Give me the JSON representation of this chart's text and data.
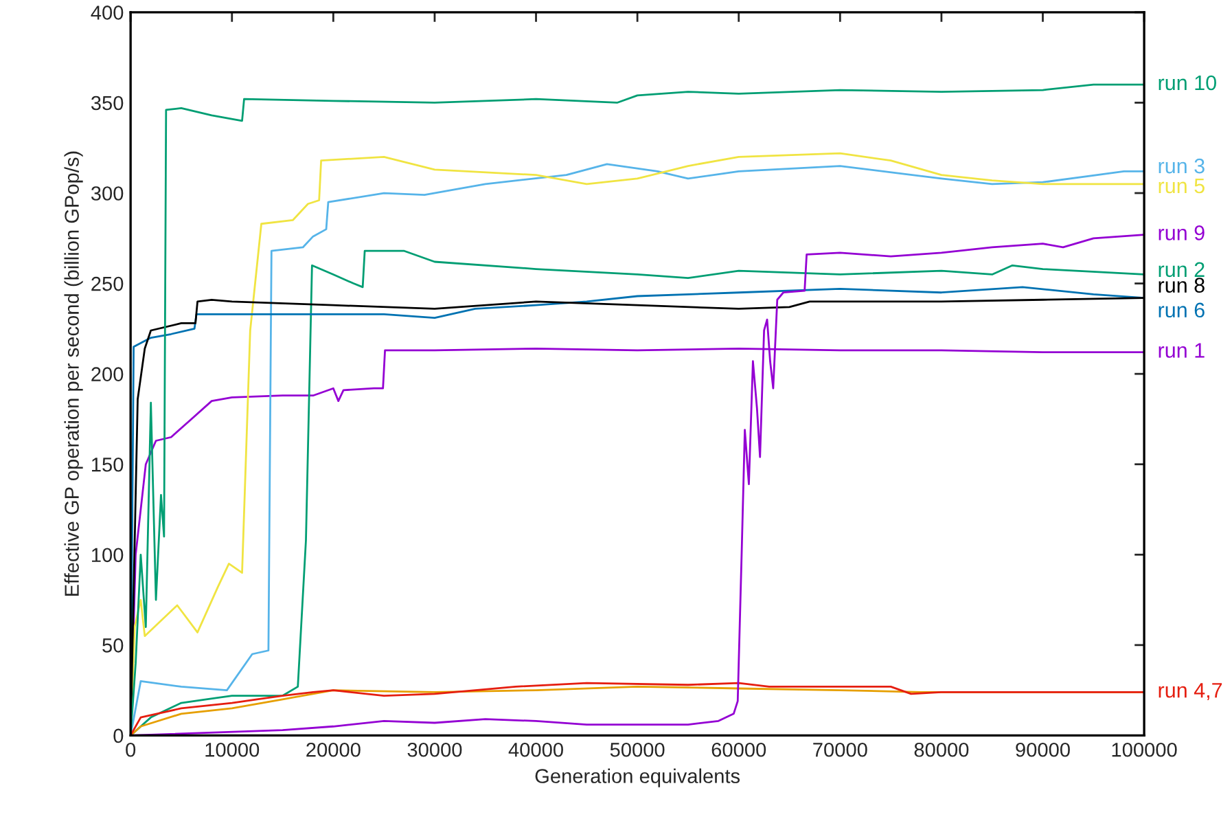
{
  "chart_data": {
    "type": "line",
    "xlabel": "Generation equivalents",
    "ylabel": "Effective GP operation per second (billion GPop/s)",
    "xlim": [
      0,
      100000
    ],
    "ylim": [
      0,
      400
    ],
    "xticks": [
      0,
      10000,
      20000,
      30000,
      40000,
      50000,
      60000,
      70000,
      80000,
      90000,
      100000
    ],
    "yticks": [
      0,
      50,
      100,
      150,
      200,
      250,
      300,
      350,
      400
    ],
    "grid": false,
    "legend": false,
    "marker": "none",
    "line_style": "solid",
    "series": [
      {
        "name": "run 1",
        "color": "#9400d3",
        "x": [
          0,
          500,
          1500,
          2500,
          4000,
          6000,
          8000,
          10000,
          15000,
          18000,
          20000,
          20500,
          21000,
          24000,
          24900,
          25100,
          30000,
          40000,
          50000,
          60000,
          70000,
          80000,
          90000,
          100000
        ],
        "values": [
          0,
          100,
          150,
          163,
          165,
          175,
          185,
          187,
          188,
          188,
          192,
          185,
          191,
          192,
          192,
          213,
          213,
          214,
          213,
          214,
          213,
          213,
          212,
          212
        ]
      },
      {
        "name": "run 2",
        "color": "#009e73",
        "x": [
          0,
          2000,
          5000,
          10000,
          15000,
          16500,
          17300,
          17900,
          20000,
          22000,
          22900,
          23100,
          27000,
          30000,
          40000,
          50000,
          55000,
          60000,
          70000,
          80000,
          85000,
          87000,
          90000,
          100000
        ],
        "values": [
          0,
          10,
          18,
          22,
          22,
          27,
          108,
          260,
          255,
          250,
          248,
          268,
          268,
          262,
          258,
          255,
          253,
          257,
          255,
          257,
          255,
          260,
          258,
          255
        ]
      },
      {
        "name": "run 3",
        "color": "#56b4e9",
        "x": [
          0,
          1000,
          5000,
          9500,
          12000,
          13600,
          13900,
          17000,
          18000,
          19300,
          19500,
          25000,
          29000,
          35000,
          43000,
          47000,
          52000,
          55000,
          60000,
          70000,
          80000,
          85000,
          90000,
          98000,
          100000
        ],
        "values": [
          0,
          30,
          27,
          25,
          45,
          47,
          268,
          270,
          276,
          280,
          295,
          300,
          299,
          305,
          310,
          316,
          312,
          308,
          312,
          315,
          308,
          305,
          306,
          312,
          312
        ]
      },
      {
        "name": null,
        "color": "#e69f00",
        "x": [
          0,
          1000,
          5000,
          10000,
          15000,
          18000,
          20000,
          30000,
          40000,
          50000,
          60000,
          70000,
          78000,
          100000
        ],
        "values": [
          0,
          5,
          12,
          15,
          20,
          23,
          25,
          24,
          25,
          27,
          26,
          25,
          24,
          24
        ]
      },
      {
        "name": "run 5",
        "color": "#f0e442",
        "x": [
          0,
          400,
          1000,
          1400,
          4600,
          6600,
          8600,
          9700,
          11000,
          11800,
          12900,
          16000,
          17500,
          18600,
          18800,
          25000,
          30000,
          40000,
          45000,
          50000,
          55000,
          60000,
          70000,
          75000,
          80000,
          85000,
          90000,
          100000
        ],
        "values": [
          0,
          60,
          75,
          55,
          72,
          57,
          82,
          95,
          90,
          224,
          283,
          285,
          294,
          296,
          318,
          320,
          313,
          310,
          305,
          308,
          315,
          320,
          322,
          318,
          310,
          307,
          305,
          305
        ]
      },
      {
        "name": "run 6",
        "color": "#0072b2",
        "x": [
          0,
          300,
          2000,
          4000,
          6300,
          6500,
          25000,
          30000,
          34000,
          40000,
          45000,
          50000,
          60000,
          70000,
          80000,
          88000,
          95000,
          100000
        ],
        "values": [
          0,
          215,
          220,
          222,
          225,
          233,
          233,
          231,
          236,
          238,
          240,
          243,
          245,
          247,
          245,
          248,
          244,
          242
        ]
      },
      {
        "name": "run 4,7",
        "color": "#e51e10",
        "x": [
          0,
          1000,
          5000,
          10000,
          15000,
          18000,
          20000,
          25000,
          30000,
          38000,
          45000,
          55000,
          60000,
          63000,
          75000,
          77000,
          80000,
          100000
        ],
        "values": [
          0,
          10,
          15,
          18,
          22,
          24,
          25,
          22,
          23,
          27,
          29,
          28,
          29,
          27,
          27,
          23,
          24,
          24
        ]
      },
      {
        "name": "run 8",
        "color": "#000000",
        "x": [
          0,
          700,
          1400,
          2000,
          5000,
          6400,
          6600,
          8000,
          10000,
          20000,
          30000,
          40000,
          50000,
          60000,
          65000,
          67000,
          80000,
          90000,
          100000
        ],
        "values": [
          0,
          186,
          214,
          224,
          228,
          228,
          240,
          241,
          240,
          238,
          236,
          240,
          238,
          236,
          237,
          240,
          240,
          241,
          242
        ]
      },
      {
        "name": "run 9",
        "color": "#9400d3",
        "x": [
          0,
          15000,
          20000,
          25000,
          30000,
          35000,
          40000,
          45000,
          55000,
          58000,
          59500,
          59900,
          60300,
          60600,
          61000,
          61400,
          61800,
          62100,
          62500,
          62800,
          63100,
          63400,
          63800,
          64400,
          66500,
          66700,
          70000,
          75000,
          80000,
          85000,
          90000,
          92000,
          95000,
          100000
        ],
        "values": [
          0,
          3,
          5,
          8,
          7,
          9,
          8,
          6,
          6,
          8,
          12,
          19,
          103,
          169,
          139,
          207,
          181,
          154,
          224,
          230,
          207,
          192,
          241,
          245,
          246,
          266,
          267,
          265,
          267,
          270,
          272,
          270,
          275,
          277
        ]
      },
      {
        "name": "run 10",
        "color": "#009e73",
        "x": [
          0,
          500,
          1000,
          1500,
          2000,
          2500,
          3000,
          3300,
          3500,
          5000,
          8000,
          11000,
          11200,
          20000,
          30000,
          40000,
          48000,
          50000,
          55000,
          60000,
          70000,
          80000,
          90000,
          95000,
          100000
        ],
        "values": [
          0,
          40,
          100,
          60,
          184,
          75,
          133,
          110,
          346,
          347,
          343,
          340,
          352,
          351,
          350,
          352,
          350,
          354,
          356,
          355,
          357,
          356,
          357,
          360,
          360
        ]
      }
    ]
  }
}
